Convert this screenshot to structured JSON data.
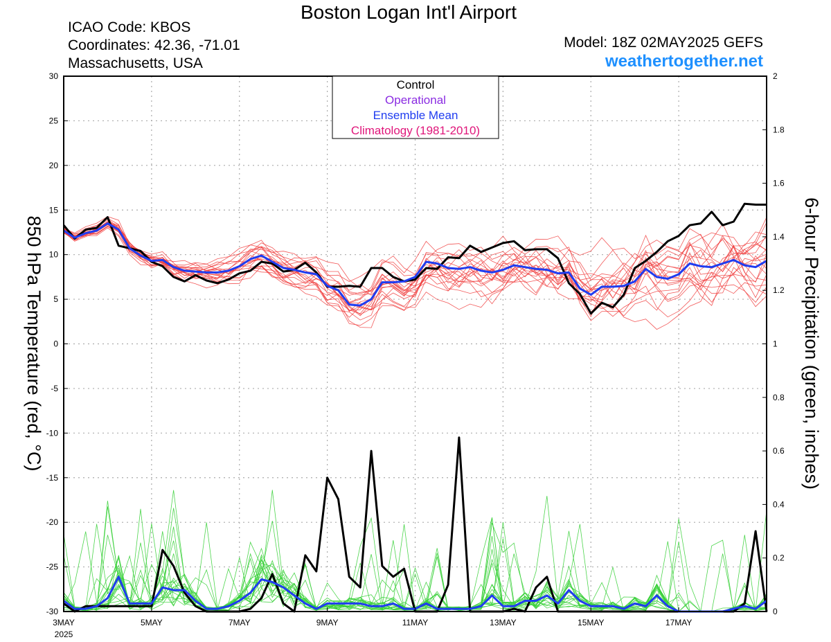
{
  "header": {
    "title": "Boston Logan Int'l Airport",
    "icao": "ICAO Code: KBOS",
    "coords": "Coordinates: 42.36, -71.01",
    "region": "Massachusetts, USA",
    "model": "Model: 18Z 02MAY2025 GEFS",
    "site": "weathertogether.net"
  },
  "colors": {
    "member_temp": "#f03c3c",
    "member_precip": "#38d038",
    "control": "#000000",
    "operational": "#8a2be2",
    "ensemble_mean": "#1f3cf0",
    "climatology": "#e0157a",
    "site": "#1e90ff"
  },
  "chart_data": {
    "type": "line",
    "ylabel_left": "850 hPa Temperature (red, °C)",
    "ylabel_right": "6-hour Precipitation (green, inches)",
    "x_unit": "days since 00Z 3MAY2025",
    "xlim": [
      0,
      16
    ],
    "ylim_left": [
      -30,
      30
    ],
    "ylim_right": [
      0,
      2
    ],
    "grid": true,
    "x_ticks": [
      {
        "x": 0,
        "label": "3MAY",
        "sub": "2025"
      },
      {
        "x": 2,
        "label": "5MAY"
      },
      {
        "x": 4,
        "label": "7MAY"
      },
      {
        "x": 6,
        "label": "9MAY"
      },
      {
        "x": 8,
        "label": "11MAY"
      },
      {
        "x": 10,
        "label": "13MAY"
      },
      {
        "x": 12,
        "label": "15MAY"
      },
      {
        "x": 14,
        "label": "17MAY"
      }
    ],
    "y_ticks_left": [
      "30",
      "25",
      "20",
      "15",
      "10",
      "5",
      "0",
      "-5",
      "-10",
      "-15",
      "-20",
      "-25",
      "-30"
    ],
    "y_ticks_right": [
      "2",
      "1.8",
      "1.6",
      "1.4",
      "1.2",
      "1",
      "0.8",
      "0.6",
      "0.4",
      "0.2",
      "0"
    ],
    "legend": {
      "position": "top-center",
      "entries": [
        {
          "label": "Control",
          "color": "#000000"
        },
        {
          "label": "Operational",
          "color": "#8a2be2"
        },
        {
          "label": "Ensemble Mean",
          "color": "#1f3cf0"
        },
        {
          "label": "Climatology (1981-2010)",
          "color": "#e0157a"
        }
      ]
    },
    "series": [
      {
        "name": "Control",
        "kind": "temperature",
        "x": [
          0,
          0.25,
          0.5,
          0.75,
          1,
          1.25,
          1.5,
          1.75,
          2,
          2.25,
          2.5,
          2.75,
          3,
          3.25,
          3.5,
          3.75,
          4,
          4.25,
          4.5,
          4.75,
          5,
          5.25,
          5.5,
          5.75,
          6,
          6.25,
          6.5,
          6.75,
          7,
          7.25,
          7.5,
          7.75,
          8,
          8.25,
          8.5,
          8.75,
          9,
          9.25,
          9.5,
          9.75,
          10,
          10.25,
          10.5,
          10.75,
          11,
          11.25,
          11.5,
          11.75,
          12,
          12.25,
          12.5,
          12.75,
          13,
          13.25,
          13.5,
          13.75,
          14,
          14.25,
          14.5,
          14.75,
          15,
          15.25,
          15.5,
          15.75,
          16
        ],
        "values": [
          13.3,
          11.8,
          12.8,
          13.0,
          14.2,
          11.0,
          10.7,
          10.4,
          9.2,
          8.7,
          7.5,
          7.0,
          7.7,
          7.1,
          6.8,
          7.2,
          7.9,
          8.2,
          9.2,
          9.0,
          8.1,
          8.3,
          9.1,
          8.0,
          6.4,
          6.4,
          6.5,
          6.4,
          8.5,
          8.5,
          7.5,
          7.0,
          7.2,
          8.5,
          8.4,
          9.7,
          9.6,
          11.0,
          10.3,
          10.8,
          11.3,
          11.5,
          10.5,
          10.6,
          10.6,
          9.6,
          6.8,
          5.6,
          3.4,
          4.6,
          4.1,
          5.5,
          8.5,
          9.3,
          10.3,
          11.5,
          12.1,
          13.3,
          13.5,
          14.8,
          13.3,
          13.7,
          15.7,
          15.6,
          15.6
        ]
      },
      {
        "name": "Ensemble Mean",
        "kind": "temperature",
        "x": [
          0,
          0.25,
          0.5,
          0.75,
          1,
          1.25,
          1.5,
          1.75,
          2,
          2.25,
          2.5,
          2.75,
          3,
          3.25,
          3.5,
          3.75,
          4,
          4.25,
          4.5,
          4.75,
          5,
          5.25,
          5.5,
          5.75,
          6,
          6.25,
          6.5,
          6.75,
          7,
          7.25,
          7.5,
          7.75,
          8,
          8.25,
          8.5,
          8.75,
          9,
          9.25,
          9.5,
          9.75,
          10,
          10.25,
          10.5,
          10.75,
          11,
          11.25,
          11.5,
          11.75,
          12,
          12.25,
          12.5,
          12.75,
          13,
          13.25,
          13.5,
          13.75,
          14,
          14.25,
          14.5,
          14.75,
          15,
          15.25,
          15.5,
          15.75,
          16
        ],
        "values": [
          12.7,
          11.9,
          12.4,
          12.7,
          13.5,
          12.8,
          10.7,
          9.9,
          9.3,
          9.4,
          8.6,
          8.2,
          8.1,
          8.0,
          8.0,
          8.2,
          8.7,
          9.5,
          9.9,
          9.2,
          8.5,
          8.3,
          8.0,
          7.8,
          6.5,
          6.0,
          4.4,
          4.3,
          5.0,
          6.9,
          6.9,
          7.0,
          7.5,
          9.2,
          9.0,
          8.5,
          8.4,
          8.6,
          8.2,
          8.0,
          8.3,
          8.8,
          8.6,
          8.4,
          8.3,
          7.9,
          8.0,
          6.2,
          5.5,
          6.4,
          6.4,
          6.5,
          7.0,
          8.4,
          7.5,
          7.3,
          7.8,
          9.0,
          8.7,
          8.6,
          9.0,
          9.4,
          8.8,
          8.6,
          9.3
        ]
      },
      {
        "name": "Control",
        "kind": "precipitation",
        "x": [
          0,
          0.25,
          0.5,
          0.75,
          1,
          1.25,
          1.5,
          1.75,
          2,
          2.25,
          2.5,
          2.75,
          3,
          3.25,
          3.5,
          3.75,
          4,
          4.25,
          4.5,
          4.75,
          5,
          5.25,
          5.5,
          5.75,
          6,
          6.25,
          6.5,
          6.75,
          7,
          7.25,
          7.5,
          7.75,
          8,
          8.25,
          8.5,
          8.75,
          9,
          9.25,
          9.5,
          9.75,
          10,
          10.25,
          10.5,
          10.75,
          11,
          11.25,
          11.5,
          11.75,
          12,
          12.25,
          12.5,
          12.75,
          13,
          13.25,
          13.5,
          13.75,
          14,
          14.25,
          14.5,
          14.75,
          15,
          15.25,
          15.5,
          15.75,
          16
        ],
        "values": [
          0.03,
          0,
          0.02,
          0.02,
          0.02,
          0.02,
          0.02,
          0.02,
          0.02,
          0.23,
          0.17,
          0.07,
          0.02,
          0,
          0,
          0,
          0,
          0.01,
          0.05,
          0.14,
          0.03,
          0,
          0.21,
          0.15,
          0.5,
          0.42,
          0.13,
          0.09,
          0.6,
          0.17,
          0.13,
          0.16,
          0,
          0,
          0,
          0.1,
          0.65,
          0,
          0,
          0,
          0,
          0.01,
          0,
          0.09,
          0.13,
          0,
          0,
          0,
          0,
          0,
          0,
          0,
          0,
          0,
          0,
          0,
          0,
          0,
          0,
          0,
          0,
          0,
          0.03,
          0.3,
          0
        ]
      },
      {
        "name": "Ensemble Mean",
        "kind": "precipitation",
        "x": [
          0,
          0.25,
          0.5,
          0.75,
          1,
          1.25,
          1.5,
          1.75,
          2,
          2.25,
          2.5,
          2.75,
          3,
          3.25,
          3.5,
          3.75,
          4,
          4.25,
          4.5,
          4.75,
          5,
          5.25,
          5.5,
          5.75,
          6,
          6.25,
          6.5,
          6.75,
          7,
          7.25,
          7.5,
          7.75,
          8,
          8.25,
          8.5,
          8.75,
          9,
          9.25,
          9.5,
          9.75,
          10,
          10.25,
          10.5,
          10.75,
          11,
          11.25,
          11.5,
          11.75,
          12,
          12.25,
          12.5,
          12.75,
          13,
          13.25,
          13.5,
          13.75,
          14,
          14.25,
          14.5,
          14.75,
          15,
          15.25,
          15.5,
          15.75,
          16
        ],
        "values": [
          0.04,
          0.01,
          0.01,
          0.02,
          0.05,
          0.13,
          0.03,
          0.03,
          0.03,
          0.09,
          0.08,
          0.08,
          0.04,
          0.01,
          0.01,
          0.02,
          0.04,
          0.07,
          0.12,
          0.11,
          0.09,
          0.06,
          0.03,
          0.01,
          0.03,
          0.03,
          0.03,
          0.03,
          0.02,
          0.02,
          0.03,
          0.01,
          0.01,
          0.03,
          0.01,
          0.01,
          0.01,
          0.01,
          0.02,
          0.06,
          0.02,
          0.02,
          0.04,
          0.04,
          0.06,
          0.03,
          0.08,
          0.04,
          0.02,
          0.02,
          0.02,
          0.01,
          0.03,
          0.02,
          0.06,
          0.02,
          0,
          0,
          0,
          0,
          0,
          0.01,
          0.02,
          0.01,
          0.04
        ]
      }
    ]
  }
}
